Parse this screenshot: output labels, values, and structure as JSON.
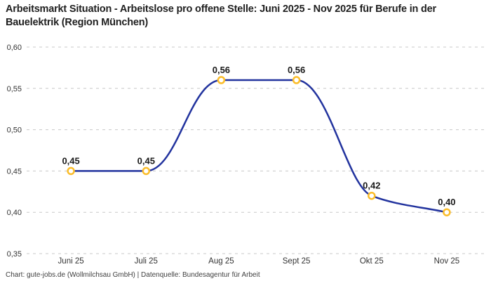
{
  "chart_data": {
    "type": "line",
    "title": "Arbeitsmarkt Situation - Arbeitslose pro offene Stelle: Juni 2025 - Nov 2025 für Berufe in der Bauelektrik (Region München)",
    "source_line": "Chart: gute-jobs.de (Wollmilchsau GmbH) | Datenquelle: Bundesagentur für Arbeit",
    "categories": [
      "Juni 25",
      "Juli 25",
      "Aug 25",
      "Sept 25",
      "Okt 25",
      "Nov 25"
    ],
    "values": [
      0.45,
      0.45,
      0.56,
      0.56,
      0.42,
      0.4
    ],
    "point_labels": [
      "0,45",
      "0,45",
      "0,56",
      "0,56",
      "0,42",
      "0,40"
    ],
    "y_ticks": [
      {
        "value": 0.6,
        "label": "0,60"
      },
      {
        "value": 0.55,
        "label": "0,55"
      },
      {
        "value": 0.5,
        "label": "0,50"
      },
      {
        "value": 0.45,
        "label": "0,45"
      },
      {
        "value": 0.4,
        "label": "0,40"
      },
      {
        "value": 0.35,
        "label": "0,35"
      }
    ],
    "ylim": [
      0.35,
      0.6
    ],
    "xlabel": "",
    "ylabel": "",
    "grid": "horizontal-dashed",
    "legend": "none",
    "curve": "monotone",
    "colors": {
      "line": "#22339e",
      "marker_stroke": "#fbbd2a",
      "marker_fill": "#ffffff",
      "grid": "#c8c8c8",
      "title_text": "#1f1f1f",
      "axis_text": "#333333",
      "label_text": "#1a1a1a",
      "footer_text": "#3f3f3f",
      "background": "#ffffff"
    }
  }
}
